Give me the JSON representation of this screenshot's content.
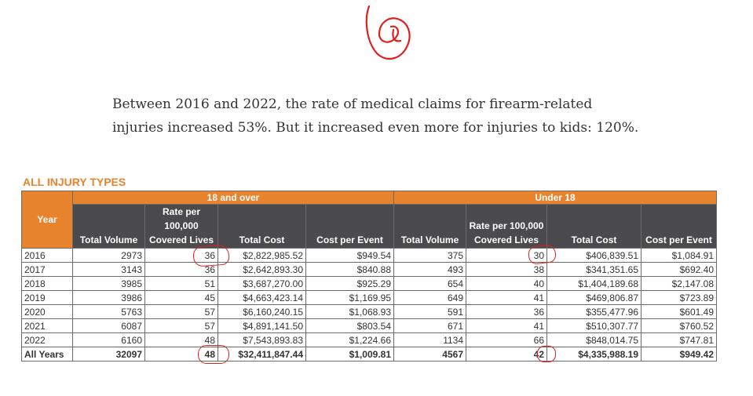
{
  "paragraph": "Between 2016 and 2022, the rate of medical claims for firearm-related injuries increased 53%. But it increased even more for injuries to kids: 120%.",
  "heading": "ALL INJURY TYPES",
  "table": {
    "year_header": "Year",
    "groups": [
      "18 and over",
      "Under 18"
    ],
    "columns": [
      "Total Volume",
      "Rate per 100,000 Covered Lives",
      "Total Cost",
      "Cost per Event"
    ],
    "rows": [
      {
        "year": "2016",
        "adult": [
          "2973",
          "36",
          "$2,822,985.52",
          "$949.54"
        ],
        "child": [
          "375",
          "30",
          "$406,839.51",
          "$1,084.91"
        ]
      },
      {
        "year": "2017",
        "adult": [
          "3143",
          "36",
          "$2,642,893.30",
          "$840.88"
        ],
        "child": [
          "493",
          "38",
          "$341,351.65",
          "$692.40"
        ]
      },
      {
        "year": "2018",
        "adult": [
          "3985",
          "51",
          "$3,687,270.00",
          "$925.29"
        ],
        "child": [
          "654",
          "40",
          "$1,404,189.68",
          "$2,147.08"
        ]
      },
      {
        "year": "2019",
        "adult": [
          "3986",
          "45",
          "$4,663,423.14",
          "$1,169.95"
        ],
        "child": [
          "649",
          "41",
          "$469,806.87",
          "$723.89"
        ]
      },
      {
        "year": "2020",
        "adult": [
          "5763",
          "57",
          "$6,160,240.15",
          "$1,068.93"
        ],
        "child": [
          "591",
          "36",
          "$355,477.96",
          "$601.49"
        ]
      },
      {
        "year": "2021",
        "adult": [
          "6087",
          "57",
          "$4,891,141.50",
          "$803.54"
        ],
        "child": [
          "671",
          "41",
          "$510,307.77",
          "$760.52"
        ]
      },
      {
        "year": "2022",
        "adult": [
          "6160",
          "48",
          "$7,543,893.83",
          "$1,224.66"
        ],
        "child": [
          "1134",
          "66",
          "$848,014.75",
          "$747.81"
        ]
      }
    ],
    "total": {
      "year": "All Years",
      "adult": [
        "32097",
        "48",
        "$32,411,847.44",
        "$1,009.81"
      ],
      "child": [
        "4567",
        "42",
        "$4,335,988.19",
        "$949.42"
      ]
    }
  },
  "annotation": {
    "color": "#e0201f",
    "glyph": "@"
  },
  "colors": {
    "orange": "#e8832e",
    "dark_header": "#4b4b4d",
    "circle": "#e0201f"
  }
}
